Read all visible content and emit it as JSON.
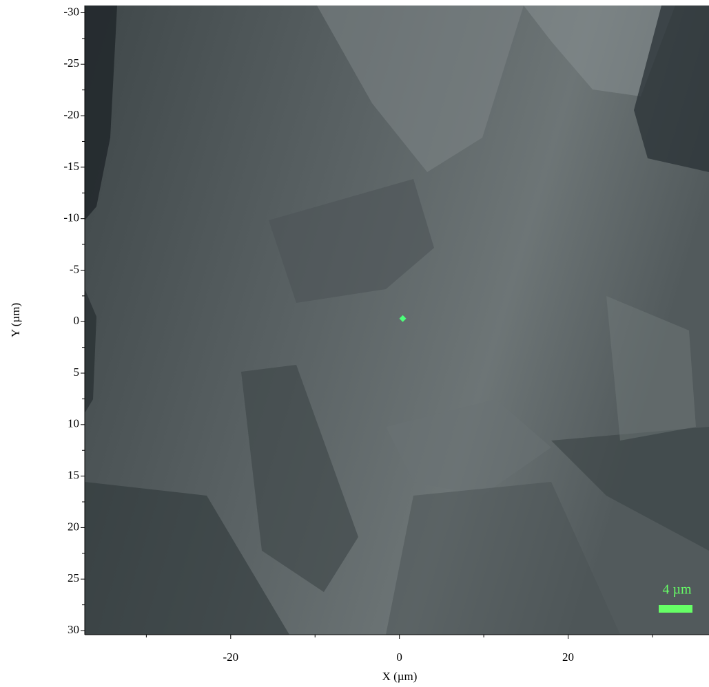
{
  "chart_data": {
    "type": "image",
    "x_label": "X (µm)",
    "y_label": "Y (µm)",
    "xlim": [
      -37.3,
      36.7
    ],
    "ylim": [
      -30.7,
      30.4
    ],
    "y_inverted": true,
    "xticks": [
      -20,
      0,
      20
    ],
    "xminorticks": [
      -30,
      -10,
      10,
      30
    ],
    "yticks": [
      -30,
      -25,
      -20,
      -15,
      -10,
      -5,
      0,
      5,
      10,
      15,
      20,
      25,
      30
    ],
    "yminorticks": [
      -27.5,
      -22.5,
      -17.5,
      -12.5,
      -7.5,
      -2.5,
      2.5,
      7.5,
      12.5,
      17.5,
      22.5,
      27.5
    ],
    "markers": {
      "x": [
        0.4
      ],
      "y": [
        -0.3
      ],
      "color": "#4cff7a"
    },
    "scalebar": {
      "length": 4,
      "label": "4 µm",
      "color": "#66ff66"
    }
  }
}
